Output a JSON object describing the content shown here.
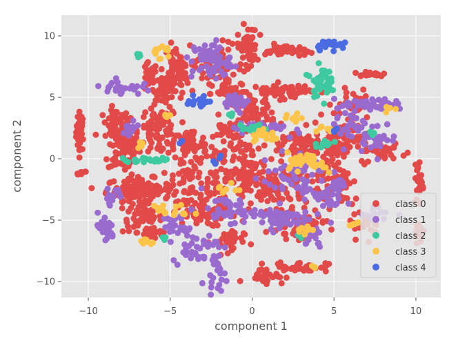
{
  "chart_data": {
    "type": "scatter",
    "title": "",
    "xlabel": "component 1",
    "ylabel": "component 2",
    "xlim": [
      -11.6,
      11.3
    ],
    "ylim": [
      -11.2,
      11.2
    ],
    "xticks": [
      -10,
      -5,
      0,
      5,
      10
    ],
    "xtick_labels": [
      "−10",
      "−5",
      "0",
      "5",
      "10"
    ],
    "yticks": [
      -10,
      -5,
      0,
      5,
      10
    ],
    "ytick_labels": [
      "−10",
      "−5",
      "0",
      "5",
      "10"
    ],
    "grid": true,
    "legend_position": "lower-right",
    "background": "#e5e5e5",
    "series": [
      {
        "name": "class 0",
        "color": "#e24a4a",
        "clusters": [
          {
            "cx": -10.5,
            "cy": 2.2,
            "sx": 0.12,
            "sy": 0.8,
            "n": 40
          },
          {
            "cx": -10.4,
            "cy": -1.2,
            "sx": 0.15,
            "sy": 0.1,
            "n": 8
          },
          {
            "cx": -8.3,
            "cy": 2.8,
            "sx": 0.4,
            "sy": 0.6,
            "n": 50
          },
          {
            "cx": -7.8,
            "cy": 0.8,
            "sx": 0.5,
            "sy": 1.0,
            "n": 80
          },
          {
            "cx": -6.9,
            "cy": -2.5,
            "sx": 1.0,
            "sy": 0.45,
            "n": 120
          },
          {
            "cx": -6.7,
            "cy": -4.8,
            "sx": 0.6,
            "sy": 0.6,
            "n": 50
          },
          {
            "cx": -6.0,
            "cy": -6.0,
            "sx": 0.5,
            "sy": 0.3,
            "n": 30
          },
          {
            "cx": -6.3,
            "cy": 6.6,
            "sx": 0.25,
            "sy": 0.6,
            "n": 25
          },
          {
            "cx": -5.7,
            "cy": 2.3,
            "sx": 0.6,
            "sy": 1.0,
            "n": 80
          },
          {
            "cx": -5.3,
            "cy": 5.8,
            "sx": 0.35,
            "sy": 0.5,
            "n": 40
          },
          {
            "cx": -4.6,
            "cy": 7.2,
            "sx": 0.4,
            "sy": 1.0,
            "n": 60
          },
          {
            "cx": -3.8,
            "cy": 1.2,
            "sx": 0.5,
            "sy": 0.6,
            "n": 50
          },
          {
            "cx": -3.9,
            "cy": -1.5,
            "sx": 0.5,
            "sy": 1.5,
            "n": 60
          },
          {
            "cx": -2.2,
            "cy": -1.0,
            "sx": 0.5,
            "sy": 1.5,
            "n": 60
          },
          {
            "cx": -3.3,
            "cy": -4.5,
            "sx": 0.8,
            "sy": 0.5,
            "n": 50
          },
          {
            "cx": -2.3,
            "cy": 7.5,
            "sx": 0.6,
            "sy": 1.0,
            "n": 60
          },
          {
            "cx": -1.2,
            "cy": 5.2,
            "sx": 0.6,
            "sy": 0.5,
            "n": 40
          },
          {
            "cx": -1.5,
            "cy": 2.3,
            "sx": 0.4,
            "sy": 0.4,
            "n": 30
          },
          {
            "cx": -0.3,
            "cy": 9.0,
            "sx": 0.3,
            "sy": 0.9,
            "n": 50
          },
          {
            "cx": -0.3,
            "cy": -1.0,
            "sx": 0.6,
            "sy": 1.3,
            "n": 90
          },
          {
            "cx": 0.2,
            "cy": 3.5,
            "sx": 0.6,
            "sy": 0.6,
            "n": 50
          },
          {
            "cx": 1.8,
            "cy": 5.5,
            "sx": 0.9,
            "sy": 0.3,
            "n": 60
          },
          {
            "cx": 2.0,
            "cy": 8.8,
            "sx": 0.6,
            "sy": 0.25,
            "n": 40
          },
          {
            "cx": 1.5,
            "cy": -2.2,
            "sx": 0.8,
            "sy": 0.8,
            "n": 70
          },
          {
            "cx": 3.0,
            "cy": 1.2,
            "sx": 1.0,
            "sy": 0.6,
            "n": 70
          },
          {
            "cx": 2.8,
            "cy": -5.5,
            "sx": 0.8,
            "sy": 0.5,
            "n": 50
          },
          {
            "cx": 3.0,
            "cy": -8.8,
            "sx": 0.8,
            "sy": 0.2,
            "n": 40
          },
          {
            "cx": 0.8,
            "cy": -9.5,
            "sx": 0.6,
            "sy": 0.3,
            "n": 30
          },
          {
            "cx": -1.5,
            "cy": -6.8,
            "sx": 0.5,
            "sy": 0.6,
            "n": 30
          },
          {
            "cx": 3.2,
            "cy": -2.5,
            "sx": 1.2,
            "sy": 1.8,
            "n": 60
          },
          {
            "cx": 5.0,
            "cy": 1.0,
            "sx": 0.4,
            "sy": 0.6,
            "n": 30
          },
          {
            "cx": 6.2,
            "cy": 4.5,
            "sx": 0.6,
            "sy": 0.6,
            "n": 40
          },
          {
            "cx": 6.0,
            "cy": 2.0,
            "sx": 0.6,
            "sy": 0.6,
            "n": 40
          },
          {
            "cx": 5.2,
            "cy": -2.2,
            "sx": 0.7,
            "sy": 1.5,
            "n": 40
          },
          {
            "cx": 7.2,
            "cy": 6.9,
            "sx": 0.5,
            "sy": 0.1,
            "n": 25
          },
          {
            "cx": 7.0,
            "cy": -5.5,
            "sx": 0.4,
            "sy": 0.5,
            "n": 20
          },
          {
            "cx": 8.0,
            "cy": 0.6,
            "sx": 0.7,
            "sy": 0.5,
            "n": 40
          },
          {
            "cx": 10.2,
            "cy": -2.0,
            "sx": 0.15,
            "sy": 1.0,
            "n": 30
          },
          {
            "cx": 10.2,
            "cy": -5.8,
            "sx": 0.15,
            "sy": 0.5,
            "n": 15
          }
        ]
      },
      {
        "name": "class 1",
        "color": "#9a6bcf",
        "clusters": [
          {
            "cx": -8.0,
            "cy": 5.8,
            "sx": 0.6,
            "sy": 0.3,
            "n": 30
          },
          {
            "cx": -8.5,
            "cy": -3.0,
            "sx": 0.3,
            "sy": 0.3,
            "n": 15
          },
          {
            "cx": -9.0,
            "cy": -5.7,
            "sx": 0.3,
            "sy": 0.6,
            "n": 25
          },
          {
            "cx": -7.5,
            "cy": 2.5,
            "sx": 0.4,
            "sy": 0.4,
            "n": 15
          },
          {
            "cx": -3.5,
            "cy": -7.2,
            "sx": 0.7,
            "sy": 0.6,
            "n": 35
          },
          {
            "cx": -2.2,
            "cy": -9.2,
            "sx": 0.3,
            "sy": 0.7,
            "n": 25
          },
          {
            "cx": -4.5,
            "cy": -5.5,
            "sx": 0.5,
            "sy": 0.5,
            "n": 25
          },
          {
            "cx": -2.5,
            "cy": 8.0,
            "sx": 0.6,
            "sy": 0.8,
            "n": 60
          },
          {
            "cx": -1.5,
            "cy": -4.2,
            "sx": 0.8,
            "sy": 0.5,
            "n": 40
          },
          {
            "cx": -0.8,
            "cy": 4.5,
            "sx": 0.4,
            "sy": 0.3,
            "n": 20
          },
          {
            "cx": 0.5,
            "cy": 2.5,
            "sx": 0.8,
            "sy": 0.3,
            "n": 40
          },
          {
            "cx": 1.5,
            "cy": -4.8,
            "sx": 1.0,
            "sy": 0.4,
            "n": 60
          },
          {
            "cx": 2.5,
            "cy": -1.5,
            "sx": 1.0,
            "sy": 1.0,
            "n": 50
          },
          {
            "cx": 3.5,
            "cy": -6.5,
            "sx": 0.4,
            "sy": 0.4,
            "n": 20
          },
          {
            "cx": 4.7,
            "cy": -3.0,
            "sx": 0.5,
            "sy": 0.8,
            "n": 30
          },
          {
            "cx": 5.8,
            "cy": 3.0,
            "sx": 0.4,
            "sy": 1.0,
            "n": 30
          },
          {
            "cx": 5.3,
            "cy": -1.8,
            "sx": 0.2,
            "sy": 0.6,
            "n": 15
          },
          {
            "cx": 7.5,
            "cy": 4.4,
            "sx": 0.9,
            "sy": 0.2,
            "n": 50
          },
          {
            "cx": 7.6,
            "cy": 1.8,
            "sx": 0.6,
            "sy": 0.6,
            "n": 30
          },
          {
            "cx": 7.7,
            "cy": -4.5,
            "sx": 0.5,
            "sy": 0.3,
            "n": 15
          }
        ]
      },
      {
        "name": "class 2",
        "color": "#3ec9a0",
        "clusters": [
          {
            "cx": -6.9,
            "cy": 8.4,
            "sx": 0.1,
            "sy": 0.1,
            "n": 6
          },
          {
            "cx": -6.3,
            "cy": -0.1,
            "sx": 0.8,
            "sy": 0.1,
            "n": 25
          },
          {
            "cx": -1.3,
            "cy": 3.6,
            "sx": 0.1,
            "sy": 0.2,
            "n": 5
          },
          {
            "cx": 0.0,
            "cy": 2.5,
            "sx": 0.5,
            "sy": 0.2,
            "n": 12
          },
          {
            "cx": 4.2,
            "cy": 6.3,
            "sx": 0.3,
            "sy": 0.6,
            "n": 40
          },
          {
            "cx": 4.3,
            "cy": 1.2,
            "sx": 0.3,
            "sy": 0.2,
            "n": 10
          },
          {
            "cx": 7.2,
            "cy": 2.1,
            "sx": 0.1,
            "sy": 0.1,
            "n": 4
          },
          {
            "cx": -5.4,
            "cy": -6.5,
            "sx": 0.1,
            "sy": 0.1,
            "n": 3
          },
          {
            "cx": 2.9,
            "cy": -6.3,
            "sx": 0.1,
            "sy": 0.1,
            "n": 3
          }
        ]
      },
      {
        "name": "class 3",
        "color": "#fcc54a",
        "clusters": [
          {
            "cx": -5.6,
            "cy": 8.7,
            "sx": 0.3,
            "sy": 0.3,
            "n": 15
          },
          {
            "cx": -6.8,
            "cy": 1.2,
            "sx": 0.1,
            "sy": 0.3,
            "n": 6
          },
          {
            "cx": -6.5,
            "cy": -6.8,
            "sx": 0.3,
            "sy": 0.2,
            "n": 10
          },
          {
            "cx": -5.5,
            "cy": -4.0,
            "sx": 0.2,
            "sy": 0.3,
            "n": 8
          },
          {
            "cx": -5.3,
            "cy": 3.5,
            "sx": 0.2,
            "sy": 0.2,
            "n": 6
          },
          {
            "cx": -4.2,
            "cy": -4.3,
            "sx": 0.3,
            "sy": 0.3,
            "n": 8
          },
          {
            "cx": -1.5,
            "cy": -2.5,
            "sx": 0.3,
            "sy": 0.3,
            "n": 8
          },
          {
            "cx": 0.8,
            "cy": 1.8,
            "sx": 0.5,
            "sy": 0.3,
            "n": 20
          },
          {
            "cx": 2.6,
            "cy": -0.1,
            "sx": 0.3,
            "sy": 0.3,
            "n": 15
          },
          {
            "cx": 3.5,
            "cy": 0.1,
            "sx": 0.3,
            "sy": 0.2,
            "n": 10
          },
          {
            "cx": 2.5,
            "cy": 3.3,
            "sx": 0.3,
            "sy": 0.2,
            "n": 8
          },
          {
            "cx": 3.2,
            "cy": -5.9,
            "sx": 0.3,
            "sy": 0.2,
            "n": 8
          },
          {
            "cx": 4.0,
            "cy": -0.7,
            "sx": 0.3,
            "sy": 0.3,
            "n": 10
          },
          {
            "cx": 3.8,
            "cy": -8.8,
            "sx": 0.2,
            "sy": 0.1,
            "n": 4
          },
          {
            "cx": 6.2,
            "cy": -5.4,
            "sx": 0.2,
            "sy": 0.2,
            "n": 6
          },
          {
            "cx": 4.5,
            "cy": 2.4,
            "sx": 0.2,
            "sy": 0.2,
            "n": 6
          },
          {
            "cx": 8.3,
            "cy": 4.0,
            "sx": 0.2,
            "sy": 0.2,
            "n": 4
          }
        ]
      },
      {
        "name": "class 4",
        "color": "#4a6be2",
        "clusters": [
          {
            "cx": -3.2,
            "cy": 4.6,
            "sx": 0.4,
            "sy": 0.3,
            "n": 20
          },
          {
            "cx": 4.8,
            "cy": 9.3,
            "sx": 0.5,
            "sy": 0.2,
            "n": 25
          },
          {
            "cx": -2.1,
            "cy": 0.1,
            "sx": 0.2,
            "sy": 0.2,
            "n": 4
          },
          {
            "cx": 5.2,
            "cy": 2.3,
            "sx": 0.1,
            "sy": 0.1,
            "n": 3
          },
          {
            "cx": -4.3,
            "cy": 1.4,
            "sx": 0.1,
            "sy": 0.1,
            "n": 2
          }
        ]
      }
    ]
  }
}
